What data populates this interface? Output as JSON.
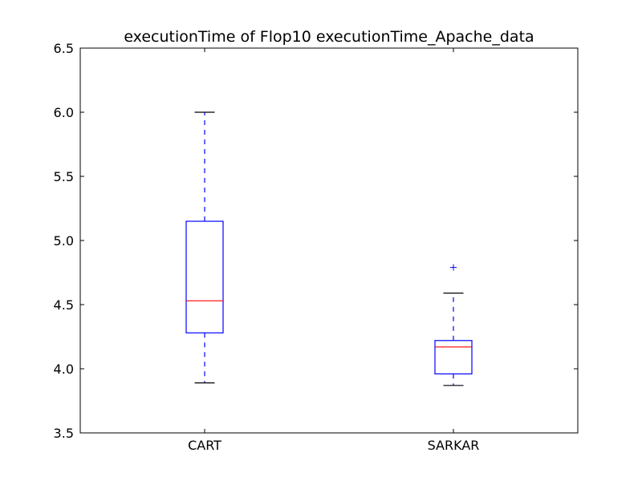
{
  "chart_data": {
    "type": "box",
    "title": "executionTime of Flop10 executionTime_Apache_data",
    "xlabel": "",
    "ylabel": "",
    "ylim": [
      3.5,
      6.5
    ],
    "yticks": [
      "3.5",
      "4.0",
      "4.5",
      "5.0",
      "5.5",
      "6.0",
      "6.5"
    ],
    "grid": false,
    "categories": [
      "CART",
      "SARKAR"
    ],
    "boxes": [
      {
        "category": "CART",
        "whisker_low": 3.89,
        "q1": 4.28,
        "median": 4.53,
        "q3": 5.15,
        "whisker_high": 6.0,
        "outliers": []
      },
      {
        "category": "SARKAR",
        "whisker_low": 3.87,
        "q1": 3.96,
        "median": 4.17,
        "q3": 4.22,
        "whisker_high": 4.59,
        "outliers": [
          4.79
        ]
      }
    ],
    "colors": {
      "box": "#0000ff",
      "median": "#ff0000",
      "cap": "#000000",
      "flier": "#0000ff"
    }
  }
}
